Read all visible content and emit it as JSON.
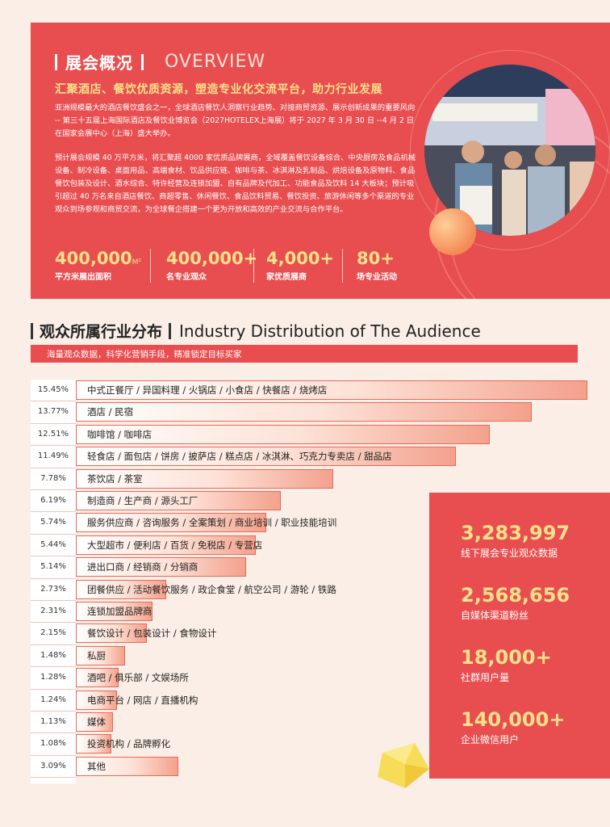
{
  "overview": {
    "title": "展会概况",
    "title_en": "OVERVIEW",
    "slogan": "汇聚酒店、餐饮优质资源，塑造专业化交流平台，助力行业发展",
    "para1": "亚洲规模最大的酒店餐饮盛会之一，全球酒店餐饮人洞察行业趋势、对接商贸资源、展示创新成果的重要风向 -- 第三十五届上海国际酒店及餐饮业博览会（2027HOTELEX上海展）将于 2027 年 3 月 30 日 --4 月 2 日在国家会展中心（上海）盛大举办。",
    "para2": "预计展会规模 40 万平方米，将汇聚超 4000 家优质品牌展商，全域覆盖餐饮设备综合、中央厨房及食品机械设备、制冷设备、桌面用品、高端食材、饮品供应链、咖啡与茶、冰淇淋及乳制品、烘焙设备及原物料、食品餐饮包装及设计、酒水综合、特许经营及连锁加盟、自有品牌及代加工、功能食品及饮料 14 大板块；预计吸引超过 40 万名来自酒店餐饮、商超零售、休闲餐饮、食品饮料贸易、餐饮投资、旅游休闲等多个渠道的专业观众到场参观和商贸交流，为全球餐企搭建一个更为开放和高效的产业交流与合作平台。",
    "stats": [
      {
        "num": "400,000",
        "unit": "M²",
        "label": "平方米展出面积"
      },
      {
        "num": "400,000+",
        "unit": "",
        "label": "名专业观众"
      },
      {
        "num": "4,000+",
        "unit": "",
        "label": "家优质展商"
      },
      {
        "num": "80+",
        "unit": "",
        "label": "场专业活动"
      }
    ]
  },
  "section": {
    "title": "观众所属行业分布",
    "title_en": "Industry Distribution of The Audience",
    "subtitle": "海量观众数据，科学化营销手段，精准锁定目标买家"
  },
  "chart_data": {
    "type": "bar",
    "orientation": "horizontal",
    "categories": [
      "中式正餐厅 / 异国料理 / 火锅店 / 小食店 / 快餐店 / 烧烤店",
      "酒店 / 民宿",
      "咖啡馆 / 咖啡店",
      "轻食店 / 面包店 / 饼房 / 披萨店 / 糕点店 / 冰淇淋、巧克力专卖店 / 甜品店",
      "茶饮店 / 茶室",
      "制造商 / 生产商 / 源头工厂",
      "服务供应商 / 咨询服务 / 全案策划 / 商业培训 / 职业技能培训",
      "大型超市 / 便利店 / 百货 / 免税店 / 专营店",
      "进出口商 / 经销商 / 分销商",
      "团餐供应 / 活动餐饮服务 / 政企食堂 / 航空公司 / 游轮 / 铁路",
      "连锁加盟品牌商",
      "餐饮设计 / 包装设计 / 食物设计",
      "私厨",
      "酒吧 / 俱乐部 / 文娱场所",
      "电商平台 / 网店 / 直播机构",
      "媒体",
      "投资机构 / 品牌孵化",
      "其他"
    ],
    "values": [
      15.45,
      13.77,
      12.51,
      11.49,
      7.78,
      6.19,
      5.74,
      5.44,
      5.14,
      2.73,
      2.31,
      2.15,
      1.48,
      1.28,
      1.24,
      1.13,
      1.08,
      3.09
    ],
    "labels": [
      "15.45%",
      "13.77%",
      "12.51%",
      "11.49%",
      "7.78%",
      "6.19%",
      "5.74%",
      "5.44%",
      "5.14%",
      "2.73%",
      "2.31%",
      "2.15%",
      "1.48%",
      "1.28%",
      "1.24%",
      "1.13%",
      "1.08%",
      "3.09%"
    ]
  },
  "side_stats": [
    {
      "num": "3,283,997",
      "label": "线下展会专业观众数据"
    },
    {
      "num": "2,568,656",
      "label": "自媒体渠道粉丝"
    },
    {
      "num": "18,000+",
      "label": "社群用户量"
    },
    {
      "num": "140,000+",
      "label": "企业微信用户"
    }
  ]
}
